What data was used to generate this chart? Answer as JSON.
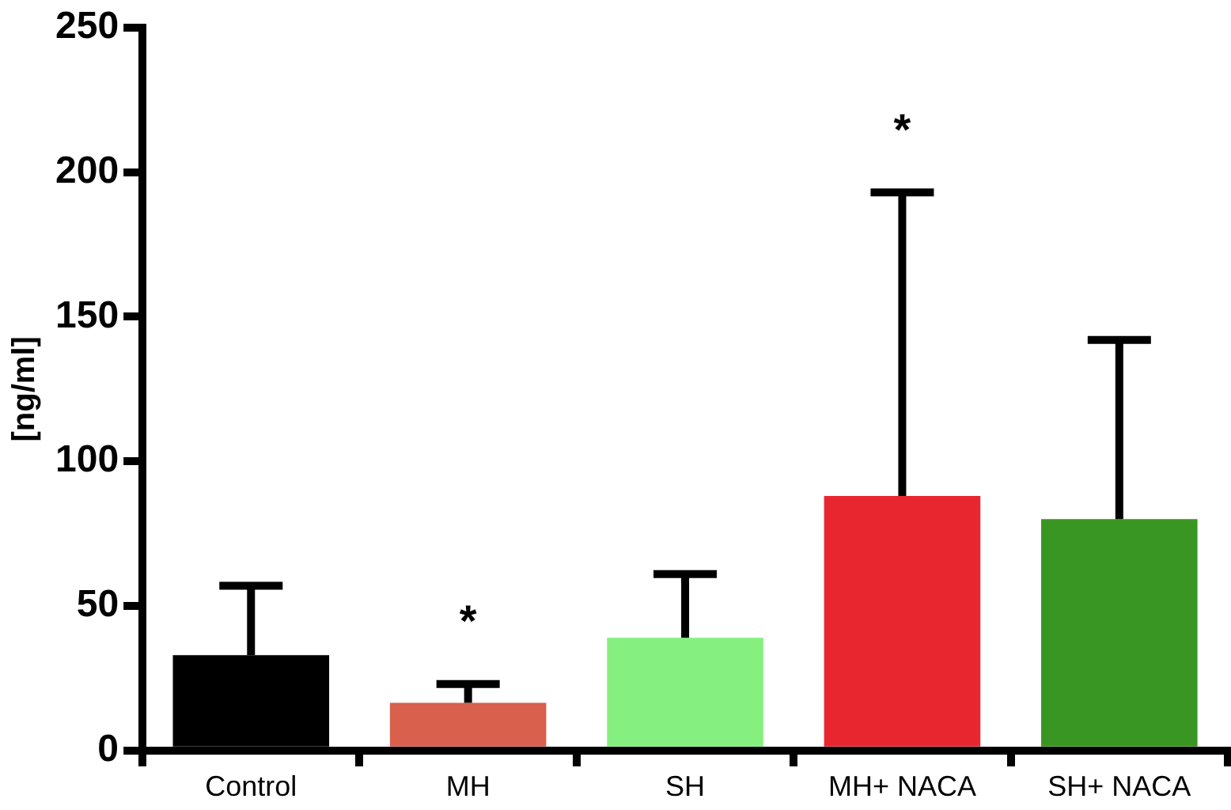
{
  "chart_data": {
    "type": "bar",
    "ylabel": "[ng/ml]",
    "categories": [
      "Control",
      "MH",
      "SH",
      "MH+ NACA",
      "SH+ NACA"
    ],
    "values": [
      33,
      16.5,
      39,
      88,
      80
    ],
    "colors": [
      "#000000",
      "#d9604c",
      "#85f07f",
      "#e8262f",
      "#3a9622"
    ],
    "errors": [
      [
        33,
        57
      ],
      [
        16.5,
        23
      ],
      [
        39,
        61
      ],
      [
        88,
        193
      ],
      [
        80,
        142
      ]
    ],
    "ylim": [
      0,
      250
    ],
    "yticks": [
      0,
      50,
      100,
      150,
      200,
      250
    ],
    "grid": false,
    "legend": false,
    "annotations": [
      {
        "text": "*",
        "x": "MH",
        "y": 23
      },
      {
        "text": "*",
        "x": "MH+ NACA",
        "y": 193
      }
    ]
  }
}
